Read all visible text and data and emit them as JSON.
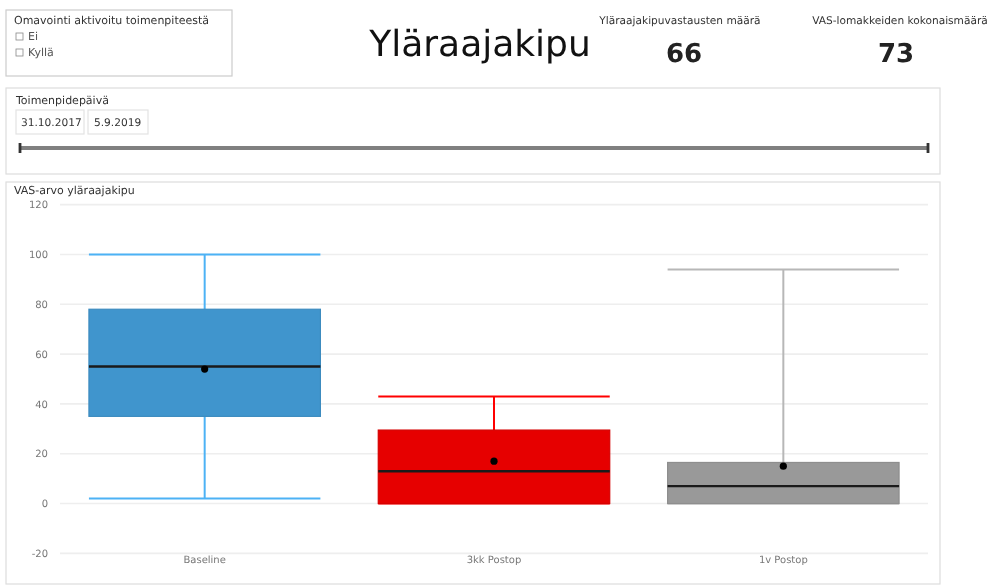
{
  "chart_data": {
    "type": "box",
    "title": "Yläraajakipu",
    "subtitle": "VAS-arvo yläraajakipu",
    "categories": [
      "Baseline",
      "3kk Postop",
      "1v Postop"
    ],
    "boxes": [
      {
        "low": 2,
        "q1": 35,
        "median": 55,
        "q3": 78,
        "high": 100,
        "mean": 54
      },
      {
        "low": 0,
        "q1": 0,
        "median": 13,
        "q3": 29.5,
        "high": 43,
        "mean": 17
      },
      {
        "low": 0,
        "q1": 0,
        "median": 7,
        "q3": 16.5,
        "high": 94,
        "mean": 15
      }
    ],
    "colors": [
      "#4095cd",
      "#e60000",
      "#999999"
    ],
    "ylim": [
      -20,
      120
    ],
    "yticks": [
      -20,
      0,
      20,
      40,
      60,
      80,
      100,
      120
    ],
    "grid": "y",
    "annotations": [
      "Omavointi aktivoitu toimenpiteestä",
      "Ei",
      "Kyllä",
      "Yläraajakipuvastausten määrä",
      "66",
      "VAS-lomakkeiden kokonaismäärä",
      "73",
      "Toimenpidepäivä",
      "31.10.2017",
      "5.9.2019"
    ]
  }
}
